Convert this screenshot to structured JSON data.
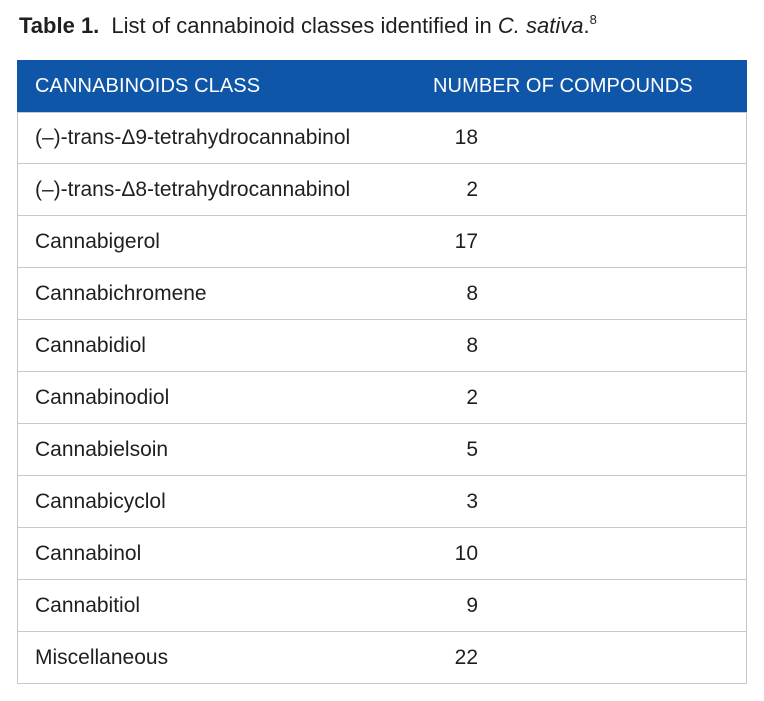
{
  "caption": {
    "label": "Table 1.",
    "text_before": "List of cannabinoid classes identified in",
    "species": "C. sativa",
    "period": ".",
    "reference": "8"
  },
  "table": {
    "headers": [
      "CANNABINOIDS CLASS",
      "NUMBER OF COMPOUNDS"
    ],
    "rows": [
      {
        "name": "(–)-trans-Δ9-tetrahydrocannabinol",
        "count": "18"
      },
      {
        "name": "(–)-trans-Δ8-tetrahydrocannabinol",
        "count": "2"
      },
      {
        "name": "Cannabigerol",
        "count": "17"
      },
      {
        "name": "Cannabichromene",
        "count": "8"
      },
      {
        "name": "Cannabidiol",
        "count": "8"
      },
      {
        "name": "Cannabinodiol",
        "count": "2"
      },
      {
        "name": "Cannabielsoin",
        "count": "5"
      },
      {
        "name": "Cannabicyclol",
        "count": "3"
      },
      {
        "name": "Cannabinol",
        "count": "10"
      },
      {
        "name": "Cannabitiol",
        "count": "9"
      },
      {
        "name": "Miscellaneous",
        "count": "22"
      }
    ]
  },
  "colors": {
    "header_background": "#1056a8",
    "header_text": "#ffffff",
    "border": "#c9c9c9"
  }
}
